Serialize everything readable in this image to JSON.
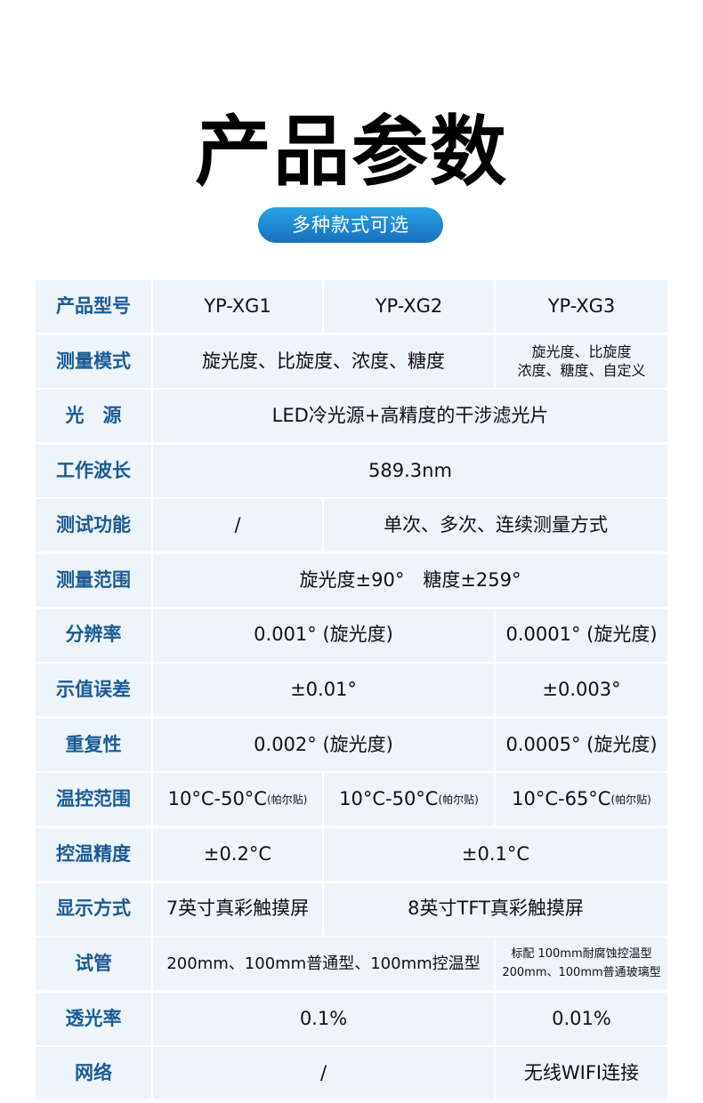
{
  "title": "产品参数",
  "subtitle_pill": "多种款式可选",
  "rows": [
    {
      "label": "产品型号",
      "cells": [
        {
          "text": "YP-XG1",
          "span": 1
        },
        {
          "text": "YP-XG2",
          "span": 1
        },
        {
          "text": "YP-XG3",
          "span": 1
        }
      ]
    },
    {
      "label": "测量模式",
      "cells": [
        {
          "text": "旋光度、比旋度、浓度、糖度",
          "span": 2
        },
        {
          "lines": [
            "旋光度、比旋度",
            "浓度、糖度、自定义"
          ],
          "span": 1,
          "size": "small"
        }
      ]
    },
    {
      "label": "光　源",
      "cells": [
        {
          "text": "LED冷光源+高精度的干涉滤光片",
          "span": 3
        }
      ]
    },
    {
      "label": "工作波长",
      "cells": [
        {
          "text": "589.3nm",
          "span": 3
        }
      ]
    },
    {
      "label": "测试功能",
      "cells": [
        {
          "text": "/",
          "span": 1
        },
        {
          "text": "单次、多次、连续测量方式",
          "span": 2
        }
      ]
    },
    {
      "label": "测量范围",
      "cells": [
        {
          "text": "旋光度±90°　糖度±259°",
          "span": 3
        }
      ]
    },
    {
      "label": "分辨率",
      "cells": [
        {
          "text": "0.001° (旋光度)",
          "span": 2
        },
        {
          "text": "0.0001° (旋光度)",
          "span": 1
        }
      ]
    },
    {
      "label": "示值误差",
      "cells": [
        {
          "text": "±0.01°",
          "span": 2
        },
        {
          "text": "±0.003°",
          "span": 1
        }
      ]
    },
    {
      "label": "重复性",
      "cells": [
        {
          "text": "0.002° (旋光度)",
          "span": 2
        },
        {
          "text": "0.0005° (旋光度)",
          "span": 1
        }
      ]
    },
    {
      "label": "温控范围",
      "cells": [
        {
          "text": "10°C-50°C",
          "note": "(帕尔贴)",
          "span": 1
        },
        {
          "text": "10°C-50°C",
          "note": "(帕尔贴)",
          "span": 1
        },
        {
          "text": "10°C-65°C",
          "note": "(帕尔贴)",
          "span": 1
        }
      ]
    },
    {
      "label": "控温精度",
      "cells": [
        {
          "text": "±0.2°C",
          "span": 1
        },
        {
          "text": "±0.1°C",
          "span": 2
        }
      ]
    },
    {
      "label": "显示方式",
      "cells": [
        {
          "text": "7英寸真彩触摸屏",
          "span": 1
        },
        {
          "text": "8英寸TFT真彩触摸屏",
          "span": 2
        }
      ]
    },
    {
      "label": "试管",
      "cells": [
        {
          "text": "200mm、100mm普通型、100mm控温型",
          "span": 2,
          "size": "mid"
        },
        {
          "lines": [
            "标配 100mm耐腐蚀控温型",
            "200mm、100mm普通玻璃型"
          ],
          "span": 1,
          "size": "tiny"
        }
      ]
    },
    {
      "label": "透光率",
      "cells": [
        {
          "text": "0.1%",
          "span": 2
        },
        {
          "text": "0.01%",
          "span": 1
        }
      ]
    },
    {
      "label": "网络",
      "cells": [
        {
          "text": "/",
          "span": 2
        },
        {
          "text": "无线WIFI连接",
          "span": 1
        }
      ]
    }
  ],
  "colors": {
    "label": "#1b5a94",
    "cell_bg": "#edf4fa",
    "pill_top": "#27a3e6",
    "pill_bottom": "#1a6fbf"
  }
}
